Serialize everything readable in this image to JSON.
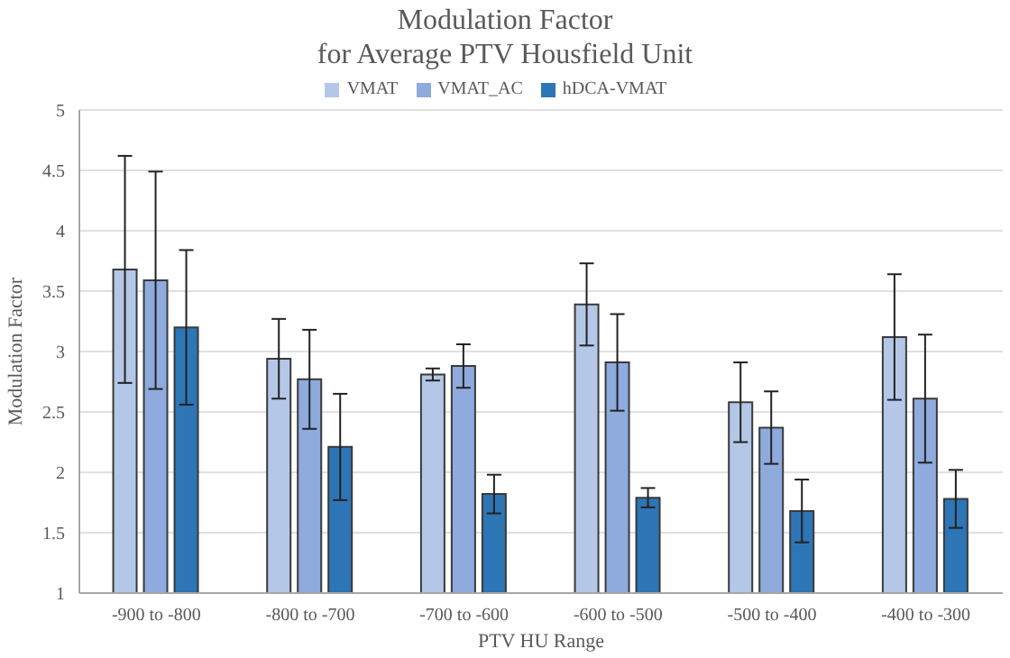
{
  "chart_data": {
    "type": "bar",
    "title": "Modulation Factor\nfor Average PTV Housfield Unit",
    "xlabel": "PTV HU Range",
    "ylabel": "Modulation Factor",
    "categories": [
      "-900 to -800",
      "-800 to -700",
      "-700 to -600",
      "-600 to -500",
      "-500 to -400",
      "-400 to -300"
    ],
    "series": [
      {
        "name": "VMAT",
        "color": "#b4c7e7",
        "values": [
          3.68,
          2.94,
          2.81,
          3.39,
          2.58,
          3.12
        ],
        "errors": [
          0.94,
          0.33,
          0.05,
          0.34,
          0.33,
          0.52
        ]
      },
      {
        "name": "VMAT_AC",
        "color": "#8faadc",
        "values": [
          3.59,
          2.77,
          2.88,
          2.91,
          2.37,
          2.61
        ],
        "errors": [
          0.9,
          0.41,
          0.18,
          0.4,
          0.3,
          0.53
        ]
      },
      {
        "name": "hDCA-VMAT",
        "color": "#2e75b6",
        "values": [
          3.2,
          2.21,
          1.82,
          1.79,
          1.68,
          1.78
        ],
        "errors": [
          0.64,
          0.44,
          0.16,
          0.08,
          0.26,
          0.24
        ]
      }
    ],
    "ylim": [
      1,
      5
    ],
    "yticks": [
      1,
      1.5,
      2,
      2.5,
      3,
      3.5,
      4,
      4.5,
      5
    ],
    "grid": "y",
    "legend": "top"
  }
}
